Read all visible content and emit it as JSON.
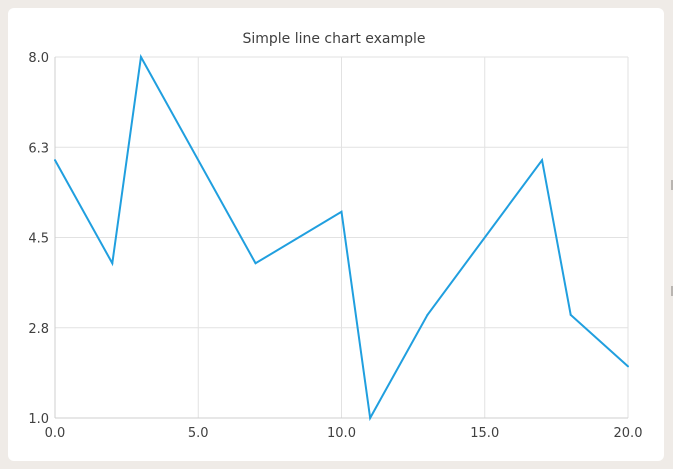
{
  "chart_data": {
    "type": "line",
    "title": "Simple line chart example",
    "xlabel": "",
    "ylabel": "",
    "xlim": [
      0,
      20
    ],
    "ylim": [
      1,
      8
    ],
    "x_ticks": [
      "0.0",
      "5.0",
      "10.0",
      "15.0",
      "20.0"
    ],
    "x_tick_values": [
      0,
      5,
      10,
      15,
      20
    ],
    "y_ticks": [
      "1.0",
      "2.8",
      "4.5",
      "6.3",
      "8.0"
    ],
    "y_tick_values": [
      1.0,
      2.75,
      4.5,
      6.25,
      8.0
    ],
    "grid": true,
    "legend": "none",
    "series": [
      {
        "color": "#209fdf",
        "x": [
          0,
          2,
          3,
          7,
          10,
          11,
          13,
          17,
          18,
          20
        ],
        "y": [
          6,
          4,
          8,
          4,
          5,
          1,
          3,
          6,
          3,
          2
        ]
      }
    ]
  }
}
